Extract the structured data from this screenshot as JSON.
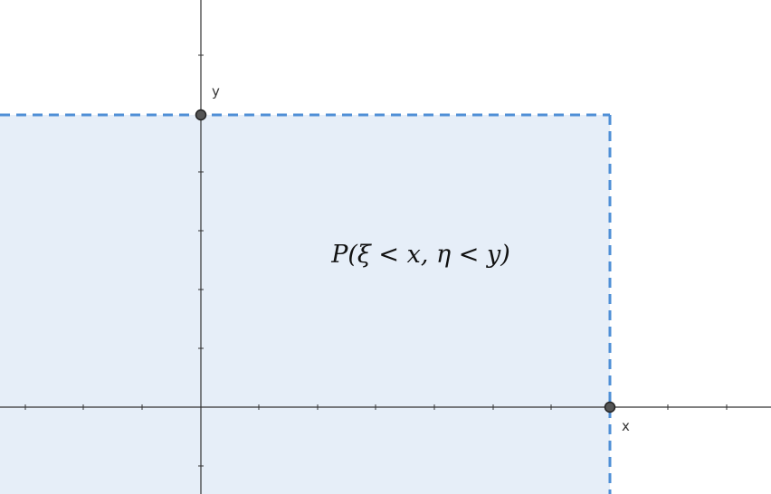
{
  "diagram": {
    "type": "joint-distribution-region",
    "x_axis_label": "x",
    "y_axis_label": "y",
    "formula": "P(ξ < x, η < y)",
    "colors": {
      "region_fill": "#e6eef8",
      "boundary": "#4f8fd6",
      "axis": "#333333",
      "point_fill": "#555555",
      "point_stroke": "#222222"
    }
  }
}
